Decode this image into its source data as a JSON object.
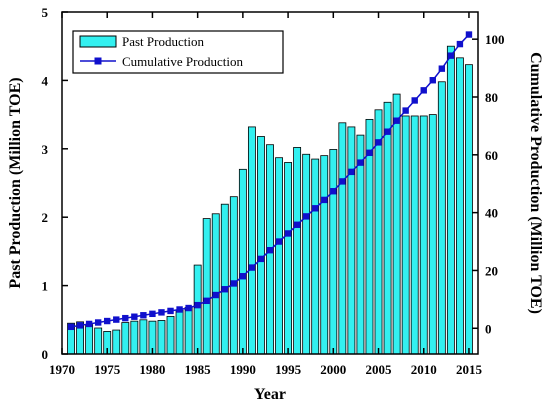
{
  "chart_data": {
    "type": "bar",
    "title": "",
    "xlabel": "Year",
    "ylabel": "Past Production (Million TOE)",
    "y2label": "Cumulative Production (Million TOE)",
    "xlim": [
      1970,
      2016
    ],
    "ylim": [
      0,
      5
    ],
    "y2lim": [
      -8.9,
      109.4
    ],
    "x_ticks": [
      "1970",
      "1975",
      "1980",
      "1985",
      "1990",
      "1995",
      "2000",
      "2005",
      "2010",
      "2015"
    ],
    "y_ticks": [
      "0",
      "1",
      "2",
      "3",
      "4",
      "5"
    ],
    "y2_ticks": [
      "0",
      "20",
      "40",
      "60",
      "80",
      "100"
    ],
    "grid": false,
    "legend_position": "top-left",
    "colors": {
      "bars": "#33f0f0",
      "line": "#1010cc",
      "axes": "#000000"
    },
    "x": [
      1971,
      1972,
      1973,
      1974,
      1975,
      1976,
      1977,
      1978,
      1979,
      1980,
      1981,
      1982,
      1983,
      1984,
      1985,
      1986,
      1987,
      1988,
      1989,
      1990,
      1991,
      1992,
      1993,
      1994,
      1995,
      1996,
      1997,
      1998,
      1999,
      2000,
      2001,
      2002,
      2003,
      2004,
      2005,
      2006,
      2007,
      2008,
      2009,
      2010,
      2011,
      2012,
      2013,
      2014,
      2015
    ],
    "series": [
      {
        "name": "Past Production",
        "type": "bar",
        "axis": "left",
        "values": [
          0.45,
          0.47,
          0.43,
          0.38,
          0.33,
          0.35,
          0.46,
          0.48,
          0.5,
          0.48,
          0.49,
          0.55,
          0.64,
          0.68,
          1.3,
          1.98,
          2.05,
          2.19,
          2.3,
          2.7,
          3.32,
          3.18,
          3.06,
          2.87,
          2.8,
          3.02,
          2.92,
          2.85,
          2.9,
          2.99,
          3.38,
          3.32,
          3.2,
          3.43,
          3.57,
          3.68,
          3.8,
          3.48,
          3.48,
          3.48,
          3.5,
          3.98,
          4.5,
          4.33,
          4.23
        ]
      },
      {
        "name": "Cumulative Production",
        "type": "line",
        "axis": "right",
        "values": [
          0.5,
          1.0,
          1.5,
          2.0,
          2.5,
          3.0,
          3.5,
          4.0,
          4.5,
          5.0,
          5.5,
          6.0,
          6.5,
          7.0,
          8.0,
          9.5,
          11.5,
          13.5,
          15.5,
          18.0,
          21.0,
          24.0,
          27.0,
          30.0,
          32.8,
          35.8,
          38.7,
          41.5,
          44.4,
          47.4,
          50.8,
          54.1,
          57.3,
          60.7,
          64.3,
          68.0,
          71.8,
          75.3,
          78.8,
          82.3,
          85.8,
          89.8,
          94.3,
          98.3,
          101.6
        ]
      }
    ]
  }
}
